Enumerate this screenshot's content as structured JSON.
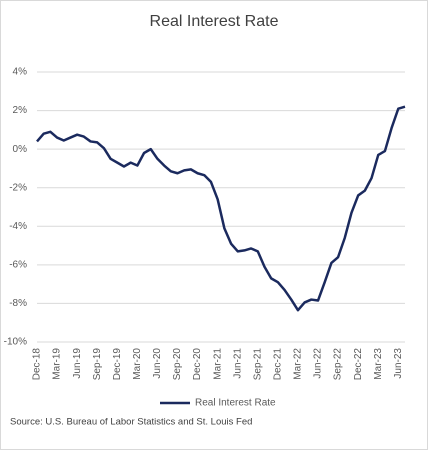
{
  "chart_data": {
    "type": "line",
    "title": "Real Interest Rate",
    "source": "Source: U.S. Bureau of Labor Statistics and St. Louis Fed",
    "categories": [
      "Dec-18",
      null,
      null,
      "Mar-19",
      null,
      null,
      "Jun-19",
      null,
      null,
      "Sep-19",
      null,
      null,
      "Dec-19",
      null,
      null,
      "Mar-20",
      null,
      null,
      "Jun-20",
      null,
      null,
      "Sep-20",
      null,
      null,
      "Dec-20",
      null,
      null,
      "Mar-21",
      null,
      null,
      "Jun-21",
      null,
      null,
      "Sep-21",
      null,
      null,
      "Dec-21",
      null,
      null,
      "Mar-22",
      null,
      null,
      "Jun-22",
      null,
      null,
      "Sep-22",
      null,
      null,
      "Dec-22",
      null,
      null,
      "Mar-23",
      null,
      null,
      "Jun-23",
      null
    ],
    "series": [
      {
        "name": "Real Interest Rate",
        "color": "#1b2a5e",
        "values": [
          0.4,
          0.8,
          0.9,
          0.6,
          0.45,
          0.6,
          0.75,
          0.65,
          0.4,
          0.35,
          0.05,
          -0.5,
          -0.7,
          -0.9,
          -0.7,
          -0.85,
          -0.2,
          0.0,
          -0.5,
          -0.85,
          -1.15,
          -1.25,
          -1.1,
          -1.05,
          -1.25,
          -1.35,
          -1.7,
          -2.6,
          -4.1,
          -4.9,
          -5.3,
          -5.25,
          -5.15,
          -5.3,
          -6.1,
          -6.7,
          -6.9,
          -7.3,
          -7.8,
          -8.35,
          -7.95,
          -7.8,
          -7.85,
          -6.9,
          -5.9,
          -5.6,
          -4.6,
          -3.3,
          -2.4,
          -2.15,
          -1.5,
          -0.3,
          -0.1,
          1.1,
          2.1,
          2.2
        ]
      }
    ],
    "ylim": [
      -10,
      4
    ],
    "yticks": [
      {
        "value": -10,
        "label": "-10%"
      },
      {
        "value": -8,
        "label": "-8%"
      },
      {
        "value": -6,
        "label": "-6%"
      },
      {
        "value": -4,
        "label": "-4%"
      },
      {
        "value": -2,
        "label": "-2%"
      },
      {
        "value": 0,
        "label": "0%"
      },
      {
        "value": 2,
        "label": "2%"
      },
      {
        "value": 4,
        "label": "4%"
      }
    ],
    "grid": true,
    "legend": "bottom"
  }
}
